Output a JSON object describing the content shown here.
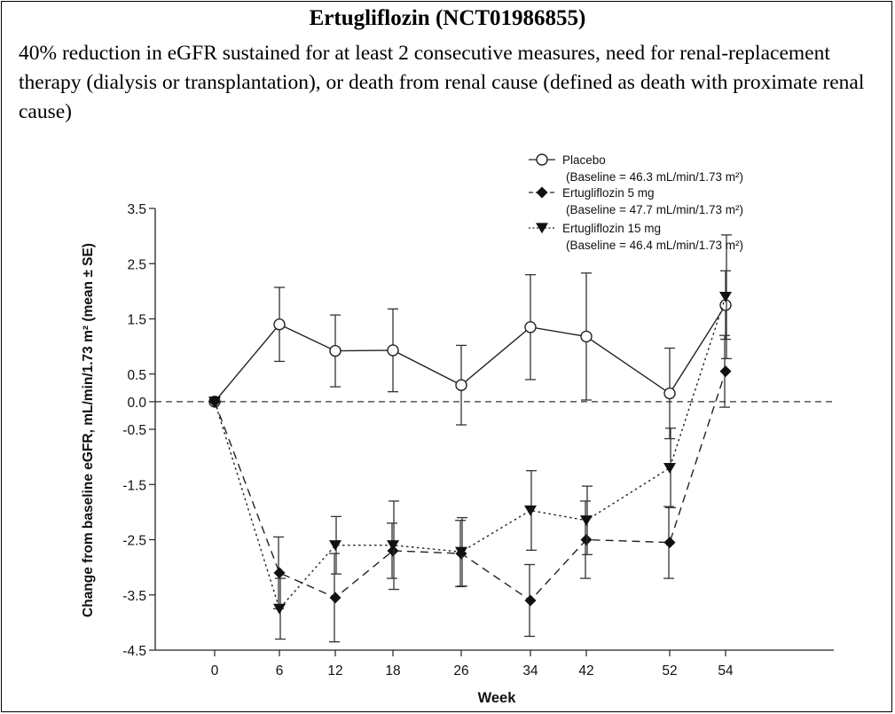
{
  "title": "Ertugliflozin (NCT01986855)",
  "subtitle": "40% reduction in eGFR sustained for at least 2 consecutive measures, need for renal-replacement therapy (dialysis or transplantation), or death from renal cause (defined as death with proximate renal cause)",
  "chart_data": {
    "type": "line",
    "xlabel": "Week",
    "ylabel": "Change from baseline eGFR, mL/min/1.73 m² (mean ± SE)",
    "x": [
      "0",
      "6",
      "12",
      "18",
      "26",
      "34",
      "42",
      "52",
      "54"
    ],
    "yticks": [
      "3.5",
      "2.5",
      "1.5",
      "0.5",
      "0.0",
      "-0.5",
      "-1.5",
      "-2.5",
      "-3.5",
      "-4.5"
    ],
    "ylim": [
      -4.5,
      3.5
    ],
    "reference_line_y": 0,
    "legend_position": "top-right",
    "series": [
      {
        "name": "Placebo",
        "baseline_label": "(Baseline = 46.3 mL/min/1.73 m²)",
        "marker": "circle-open",
        "line_style": "solid",
        "values": [
          0.0,
          1.4,
          0.92,
          0.93,
          0.3,
          1.35,
          1.18,
          0.15,
          1.75
        ],
        "se": [
          0.0,
          0.67,
          0.65,
          0.75,
          0.72,
          0.95,
          1.15,
          0.82,
          0.62
        ]
      },
      {
        "name": "Ertugliflozin 5 mg",
        "baseline_label": "(Baseline = 47.7 mL/min/1.73 m²)",
        "marker": "diamond-filled",
        "line_style": "dashed",
        "values": [
          0.0,
          -3.1,
          -3.55,
          -2.7,
          -2.75,
          -3.6,
          -2.5,
          -2.55,
          0.55
        ],
        "se": [
          0.0,
          0.65,
          0.8,
          0.5,
          0.6,
          0.65,
          0.7,
          0.65,
          0.65
        ]
      },
      {
        "name": "Ertugliflozin 15 mg",
        "baseline_label": "(Baseline = 46.4 mL/min/1.73 m²)",
        "marker": "triangle-down-filled",
        "line_style": "dotted",
        "values": [
          0.0,
          -3.75,
          -2.6,
          -2.6,
          -2.72,
          -1.97,
          -2.15,
          -1.2,
          1.9
        ],
        "se": [
          0.0,
          0.55,
          0.52,
          0.8,
          0.62,
          0.72,
          0.62,
          0.72,
          1.12
        ]
      }
    ]
  }
}
